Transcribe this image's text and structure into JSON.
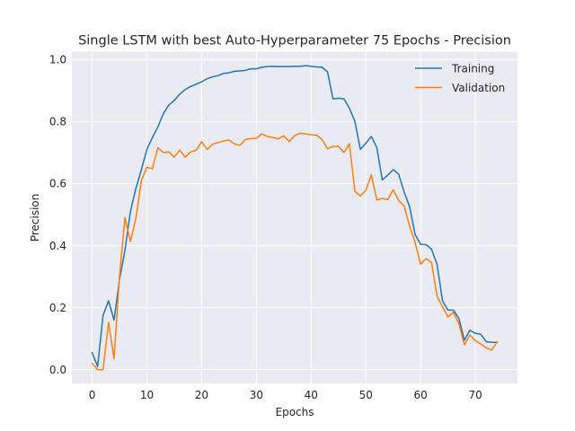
{
  "chart_data": {
    "type": "line",
    "title": "Single LSTM with best Auto-Hyperparameter 75 Epochs - Precision",
    "xlabel": "Epochs",
    "ylabel": "Precision",
    "xlim": [
      -3.7,
      77.7
    ],
    "ylim": [
      -0.045,
      1.025
    ],
    "xticks": [
      0,
      10,
      20,
      30,
      40,
      50,
      60,
      70
    ],
    "yticks": [
      0.0,
      0.2,
      0.4,
      0.6,
      0.8,
      1.0
    ],
    "ytick_labels": [
      "0.0",
      "0.2",
      "0.4",
      "0.6",
      "0.8",
      "1.0"
    ],
    "grid": true,
    "legend_position": "top-right",
    "series": [
      {
        "name": "Training",
        "color": "#1f77b4",
        "values": [
          0.055,
          0.01,
          0.175,
          0.222,
          0.16,
          0.29,
          0.385,
          0.51,
          0.585,
          0.645,
          0.71,
          0.748,
          0.782,
          0.825,
          0.853,
          0.868,
          0.888,
          0.903,
          0.913,
          0.92,
          0.928,
          0.938,
          0.944,
          0.948,
          0.955,
          0.957,
          0.962,
          0.963,
          0.965,
          0.97,
          0.97,
          0.975,
          0.977,
          0.978,
          0.977,
          0.977,
          0.977,
          0.978,
          0.978,
          0.98,
          0.978,
          0.976,
          0.975,
          0.96,
          0.873,
          0.875,
          0.873,
          0.843,
          0.8,
          0.71,
          0.73,
          0.752,
          0.716,
          0.612,
          0.627,
          0.645,
          0.63,
          0.572,
          0.525,
          0.435,
          0.404,
          0.403,
          0.388,
          0.34,
          0.222,
          0.192,
          0.192,
          0.165,
          0.095,
          0.127,
          0.117,
          0.114,
          0.09,
          0.088,
          0.088
        ]
      },
      {
        "name": "Validation",
        "color": "#ff7f0e",
        "values": [
          0.02,
          0.0,
          0.0,
          0.152,
          0.035,
          0.3,
          0.49,
          0.413,
          0.488,
          0.61,
          0.652,
          0.648,
          0.715,
          0.7,
          0.702,
          0.685,
          0.708,
          0.685,
          0.702,
          0.707,
          0.735,
          0.71,
          0.727,
          0.732,
          0.737,
          0.74,
          0.728,
          0.723,
          0.742,
          0.745,
          0.746,
          0.76,
          0.752,
          0.748,
          0.744,
          0.754,
          0.735,
          0.755,
          0.762,
          0.76,
          0.757,
          0.756,
          0.742,
          0.712,
          0.72,
          0.72,
          0.7,
          0.728,
          0.575,
          0.56,
          0.578,
          0.628,
          0.547,
          0.552,
          0.548,
          0.58,
          0.545,
          0.528,
          0.462,
          0.41,
          0.34,
          0.358,
          0.345,
          0.237,
          0.203,
          0.17,
          0.185,
          0.148,
          0.08,
          0.112,
          0.093,
          0.083,
          0.07,
          0.063,
          0.09
        ]
      }
    ]
  }
}
